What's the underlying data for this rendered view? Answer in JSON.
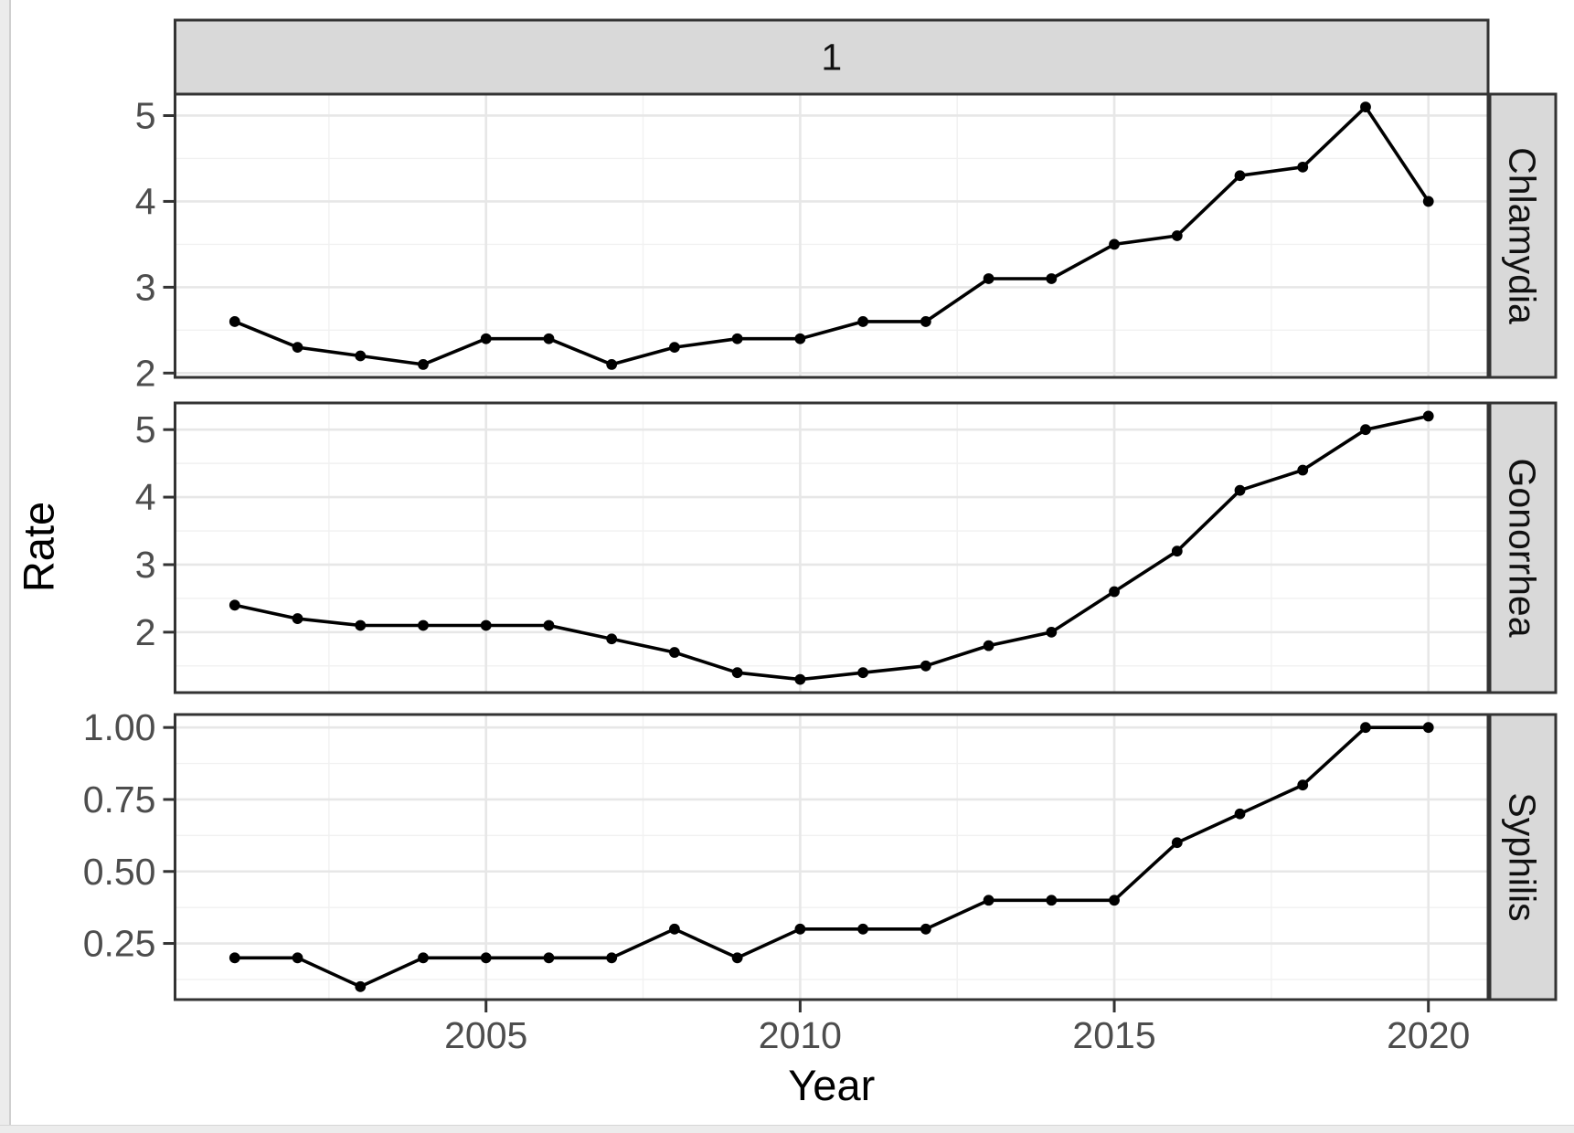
{
  "chart_data": {
    "type": "line",
    "title": "",
    "column_strip_label": "1",
    "xlabel": "Year",
    "ylabel": "Rate",
    "legend": "none",
    "grid": "on",
    "x": [
      2001,
      2002,
      2003,
      2004,
      2005,
      2006,
      2007,
      2008,
      2009,
      2010,
      2011,
      2012,
      2013,
      2014,
      2015,
      2016,
      2017,
      2018,
      2019,
      2020
    ],
    "x_major_ticks": [
      2005,
      2010,
      2015,
      2020
    ],
    "x_tick_labels": [
      "2005",
      "2010",
      "2015",
      "2020"
    ],
    "panels": [
      {
        "facet": "Chlamydia",
        "values": [
          2.6,
          2.3,
          2.2,
          2.1,
          2.4,
          2.4,
          2.1,
          2.3,
          2.4,
          2.4,
          2.6,
          2.6,
          3.1,
          3.1,
          3.5,
          3.6,
          4.3,
          4.4,
          5.1,
          4.0
        ],
        "y_major_ticks": [
          5,
          4,
          3,
          2
        ],
        "y_tick_labels": [
          "5",
          "4",
          "3",
          "2"
        ]
      },
      {
        "facet": "Gonorrhea",
        "values": [
          2.4,
          2.2,
          2.1,
          2.1,
          2.1,
          2.1,
          1.9,
          1.7,
          1.4,
          1.3,
          1.4,
          1.5,
          1.8,
          2.0,
          2.6,
          3.2,
          4.1,
          4.4,
          5.0,
          5.2
        ],
        "y_major_ticks": [
          5,
          4,
          3,
          2
        ],
        "y_tick_labels": [
          "5",
          "4",
          "3",
          "2"
        ]
      },
      {
        "facet": "Syphilis",
        "values": [
          0.2,
          0.2,
          0.1,
          0.2,
          0.2,
          0.2,
          0.2,
          0.3,
          0.2,
          0.3,
          0.3,
          0.3,
          0.4,
          0.4,
          0.4,
          0.6,
          0.7,
          0.8,
          1.0,
          1.0
        ],
        "y_major_ticks": [
          1.0,
          0.75,
          0.5,
          0.25
        ],
        "y_tick_labels": [
          "1.00",
          "0.75",
          "0.50",
          "0.25"
        ]
      }
    ],
    "style": {
      "background": "#ffffff",
      "panel_background": "#ffffff",
      "panel_border": "#333333",
      "strip_background": "#d9d9d9",
      "strip_border": "#333333",
      "strip_text": "#111111",
      "grid_major": "#e7e7e7",
      "grid_minor": "#f1f1f1",
      "line_color": "#000000",
      "point_color": "#000000",
      "tick_color": "#333333",
      "tick_label_color": "#4d4d4d",
      "axis_title_color": "#000000"
    }
  }
}
